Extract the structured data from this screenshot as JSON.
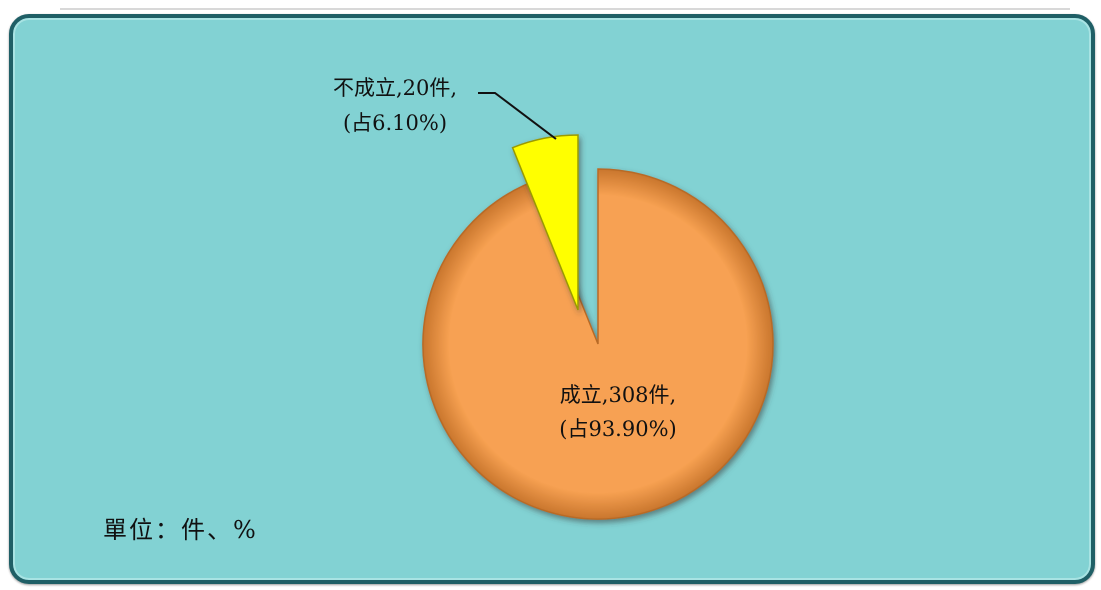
{
  "chart_data": {
    "type": "pie",
    "exploded": true,
    "slices": [
      {
        "name": "成立",
        "value": 308,
        "percent": 93.9,
        "label_line1": "成立,308件,",
        "label_line2": "(占93.90%)",
        "color": "#f7a152"
      },
      {
        "name": "不成立",
        "value": 20,
        "percent": 6.1,
        "label_line1": "不成立,20件,",
        "label_line2": "(占6.10%)",
        "color": "#ffff00"
      }
    ],
    "unit_note": "單位：件、%",
    "legend": "none"
  }
}
